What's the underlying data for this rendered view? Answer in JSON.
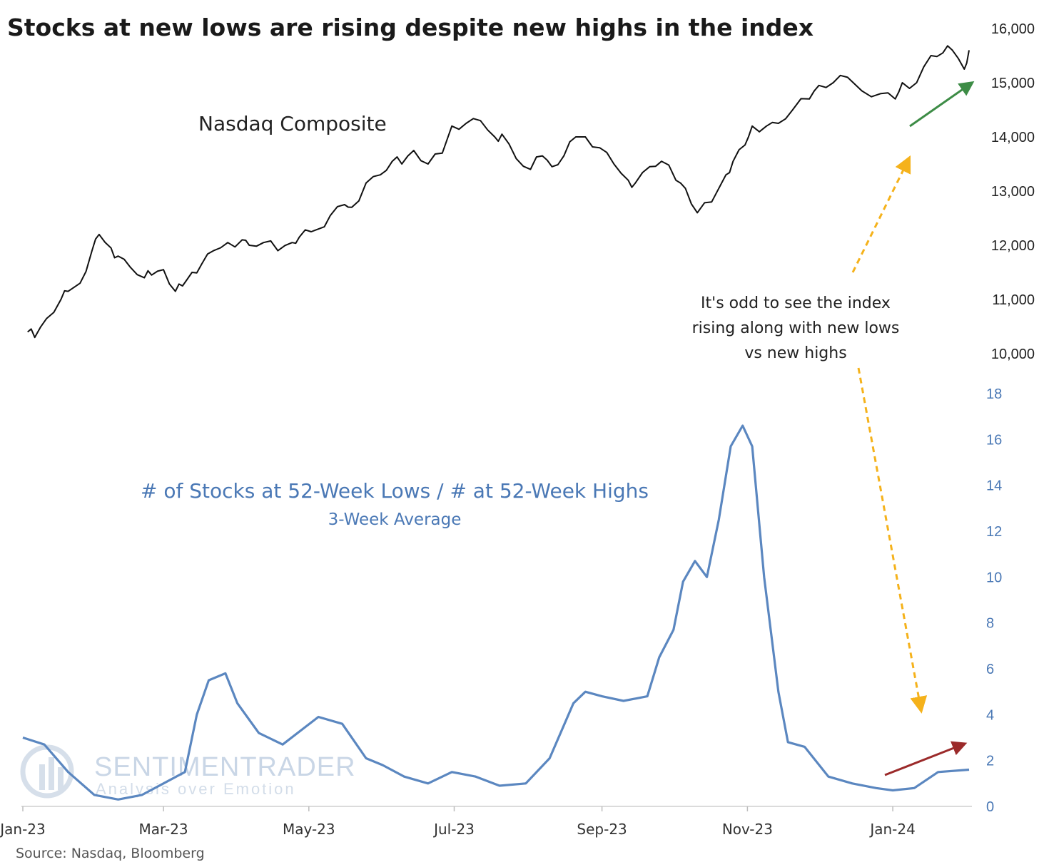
{
  "chart_data": [
    {
      "type": "line",
      "title": "Stocks at new lows are rising despite new highs in the index",
      "series_label": "Nasdaq Composite",
      "axis": "right",
      "ylim": [
        10000,
        16000
      ],
      "yticks": [
        "16,000",
        "15,000",
        "14,000",
        "13,000",
        "12,000",
        "11,000",
        "10,000"
      ],
      "yticks_values": [
        16000,
        15000,
        14000,
        13000,
        12000,
        11000,
        10000
      ],
      "x": [
        "2023-01-03",
        "2023-01-06",
        "2023-01-11",
        "2023-01-17",
        "2023-01-20",
        "2023-01-25",
        "2023-01-30",
        "2023-02-02",
        "2023-02-07",
        "2023-02-10",
        "2023-02-15",
        "2023-02-21",
        "2023-02-24",
        "2023-03-01",
        "2023-03-06",
        "2023-03-09",
        "2023-03-13",
        "2023-03-17",
        "2023-03-22",
        "2023-03-28",
        "2023-04-03",
        "2023-04-06",
        "2023-04-12",
        "2023-04-18",
        "2023-04-24",
        "2023-04-27",
        "2023-05-02",
        "2023-05-05",
        "2023-05-10",
        "2023-05-16",
        "2023-05-19",
        "2023-05-25",
        "2023-05-31",
        "2023-06-05",
        "2023-06-09",
        "2023-06-14",
        "2023-06-20",
        "2023-06-26",
        "2023-06-30",
        "2023-07-06",
        "2023-07-12",
        "2023-07-18",
        "2023-07-21",
        "2023-07-27",
        "2023-08-02",
        "2023-08-07",
        "2023-08-11",
        "2023-08-16",
        "2023-08-21",
        "2023-08-25",
        "2023-08-31",
        "2023-09-06",
        "2023-09-12",
        "2023-09-15",
        "2023-09-21",
        "2023-09-26",
        "2023-10-02",
        "2023-10-06",
        "2023-10-11",
        "2023-10-17",
        "2023-10-23",
        "2023-10-26",
        "2023-10-31",
        "2023-11-03",
        "2023-11-09",
        "2023-11-14",
        "2023-11-20",
        "2023-11-27",
        "2023-12-01",
        "2023-12-07",
        "2023-12-13",
        "2023-12-19",
        "2023-12-27",
        "2024-01-02",
        "2024-01-05",
        "2024-01-11",
        "2024-01-17",
        "2024-01-22",
        "2024-01-26",
        "2024-01-31",
        "2024-02-02"
      ],
      "values": [
        10400,
        10300,
        10650,
        11000,
        11150,
        11300,
        11900,
        12200,
        11950,
        11800,
        11600,
        11400,
        11450,
        11550,
        11150,
        11250,
        11500,
        11650,
        11900,
        12050,
        12100,
        12000,
        12050,
        11900,
        12050,
        12150,
        12250,
        12300,
        12550,
        12750,
        12700,
        13150,
        13300,
        13550,
        13500,
        13750,
        13500,
        13700,
        14200,
        14250,
        14300,
        14000,
        14050,
        13600,
        13400,
        13650,
        13450,
        13650,
        14000,
        14000,
        13800,
        13500,
        13200,
        13150,
        13450,
        13550,
        13200,
        13050,
        12600,
        12800,
        13300,
        13550,
        13850,
        14200,
        14200,
        14250,
        14500,
        14700,
        14950,
        15000,
        15100,
        14850,
        14800,
        14700,
        15000,
        15000,
        15500,
        15550,
        15600,
        15250,
        15600
      ]
    },
    {
      "type": "line",
      "series_label": "# of Stocks at 52-Week Lows / # at 52-Week Highs",
      "series_sublabel": "3-Week Average",
      "axis": "right",
      "ylim": [
        0,
        18
      ],
      "yticks": [
        "18",
        "16",
        "14",
        "12",
        "10",
        "8",
        "6",
        "4",
        "2",
        "0"
      ],
      "yticks_values": [
        18,
        16,
        14,
        12,
        10,
        8,
        6,
        4,
        2,
        0
      ],
      "x": [
        "2023-01-01",
        "2023-01-10",
        "2023-01-20",
        "2023-01-31",
        "2023-02-10",
        "2023-02-20",
        "2023-03-01",
        "2023-03-10",
        "2023-03-15",
        "2023-03-20",
        "2023-03-27",
        "2023-04-01",
        "2023-04-10",
        "2023-04-20",
        "2023-04-30",
        "2023-05-05",
        "2023-05-15",
        "2023-05-25",
        "2023-06-01",
        "2023-06-10",
        "2023-06-20",
        "2023-06-30",
        "2023-07-10",
        "2023-07-20",
        "2023-07-31",
        "2023-08-10",
        "2023-08-20",
        "2023-08-25",
        "2023-09-01",
        "2023-09-10",
        "2023-09-20",
        "2023-09-25",
        "2023-10-01",
        "2023-10-05",
        "2023-10-10",
        "2023-10-15",
        "2023-10-20",
        "2023-10-25",
        "2023-10-30",
        "2023-11-03",
        "2023-11-08",
        "2023-11-14",
        "2023-11-18",
        "2023-11-25",
        "2023-12-05",
        "2023-12-15",
        "2023-12-25",
        "2024-01-01",
        "2024-01-10",
        "2024-01-20",
        "2024-02-02"
      ],
      "values": [
        3.0,
        2.7,
        1.5,
        0.5,
        0.3,
        0.5,
        1.0,
        1.5,
        4.0,
        5.5,
        5.8,
        4.5,
        3.2,
        2.7,
        3.5,
        3.9,
        3.6,
        2.1,
        1.8,
        1.3,
        1.0,
        1.5,
        1.3,
        0.9,
        1.0,
        2.1,
        4.5,
        5.0,
        4.8,
        4.6,
        4.8,
        6.5,
        7.7,
        9.8,
        10.7,
        10.0,
        12.5,
        15.7,
        16.6,
        15.7,
        10.0,
        5.0,
        2.8,
        2.6,
        1.3,
        1.0,
        0.8,
        0.7,
        0.8,
        1.5,
        1.6
      ],
      "annotations": [
        "It's odd to see the index",
        "rising along with new lows",
        "vs new highs"
      ]
    }
  ],
  "x_axis": {
    "tick_labels": [
      "Jan-23",
      "Mar-23",
      "May-23",
      "Jul-23",
      "Sep-23",
      "Nov-23",
      "Jan-24"
    ],
    "tick_dates": [
      "2023-01-01",
      "2023-03-01",
      "2023-05-01",
      "2023-07-01",
      "2023-09-01",
      "2023-11-01",
      "2024-01-01"
    ]
  },
  "colors": {
    "nasdaq_line": "#111111",
    "ratio_line": "#5b87c0",
    "axis_blue": "#4a78b5",
    "dashed_arrow": "#f5b21b",
    "green_arrow": "#3d8c46",
    "red_arrow": "#9b2a2a"
  },
  "watermark": {
    "brand": "SENTIMENTRADER",
    "tagline": "Analysis over Emotion"
  },
  "source": "Source: Nasdaq, Bloomberg"
}
